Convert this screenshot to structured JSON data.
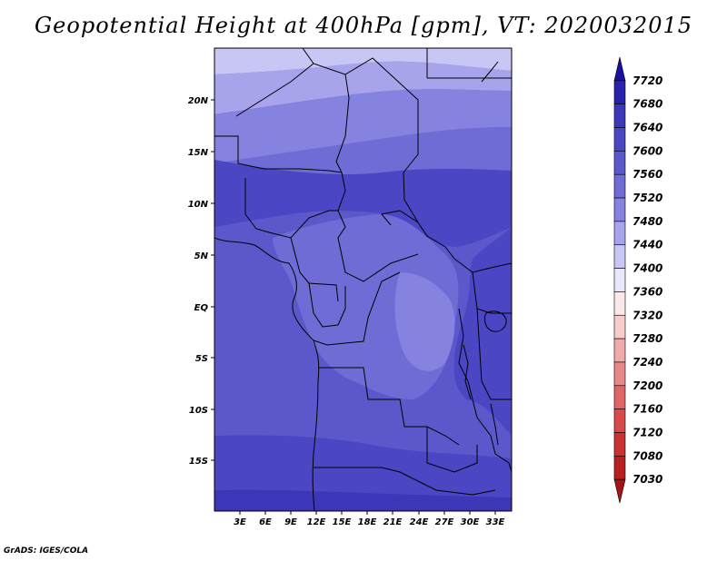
{
  "title": "Geopotential Height at 400hPa [gpm], VT: 2020032015",
  "credit": "GrADS: IGES/COLA",
  "map": {
    "lat_ticks": [
      "20N",
      "15N",
      "10N",
      "5N",
      "EQ",
      "5S",
      "10S",
      "15S"
    ],
    "lat_values": [
      20,
      15,
      10,
      5,
      0,
      -5,
      -10,
      -15
    ],
    "lon_ticks": [
      "3E",
      "6E",
      "9E",
      "12E",
      "15E",
      "18E",
      "21E",
      "24E",
      "27E",
      "30E",
      "33E"
    ],
    "lon_values": [
      3,
      6,
      9,
      12,
      15,
      18,
      21,
      24,
      27,
      30,
      33
    ],
    "lat_range": [
      -19.5,
      24.8
    ],
    "lon_range": [
      0.6,
      35.5
    ]
  },
  "colorbar": {
    "labels": [
      "7720",
      "7680",
      "7640",
      "7600",
      "7560",
      "7520",
      "7480",
      "7440",
      "7400",
      "7360",
      "7320",
      "7280",
      "7240",
      "7200",
      "7160",
      "7120",
      "7080",
      "7030"
    ],
    "colors": [
      "#1a10a0",
      "#2a22ac",
      "#3c36b8",
      "#4b46c4",
      "#5c58cc",
      "#6f6cd6",
      "#8682e0",
      "#a7a4ec",
      "#c8c6f4",
      "#e8e8fa",
      "#fbe8e8",
      "#f6cccc",
      "#f0aaaa",
      "#e88888",
      "#e06666",
      "#d84a4a",
      "#c93232",
      "#b82020",
      "#a51414"
    ]
  },
  "field_colors": {
    "c7440": "#c8c6f4",
    "c7480": "#a7a4ec",
    "c7520": "#8682e0",
    "c7560": "#6f6cd6",
    "c7600": "#5c58cc",
    "c7640": "#4b46c4",
    "c7680": "#3c36b8"
  }
}
